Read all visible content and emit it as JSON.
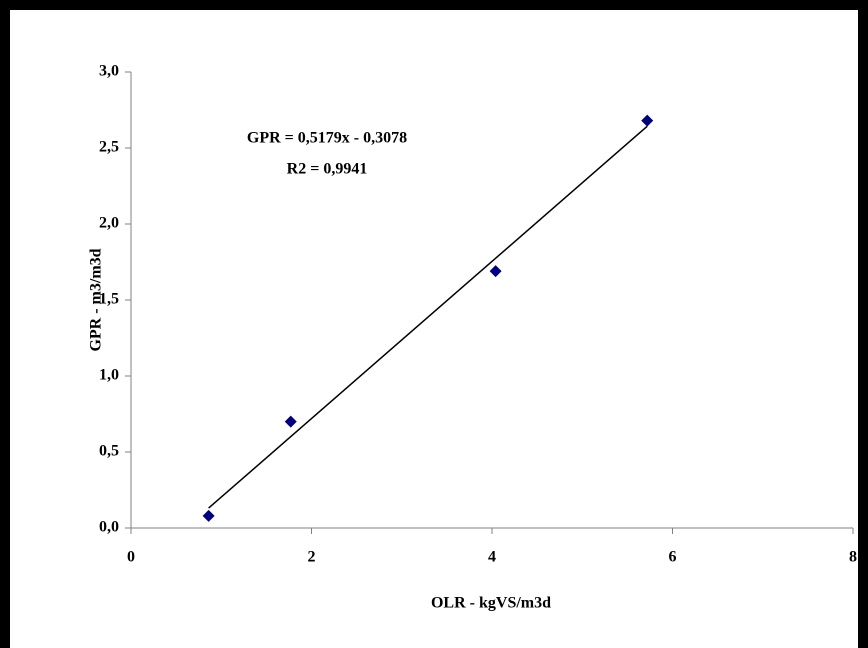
{
  "chart_data": {
    "type": "scatter",
    "x_label": "OLR - kgVS/m3d",
    "y_label": "GPR - m3/m3d",
    "annotations": [
      "GPR = 0,5179x - 0,3078",
      "R2 = 0,9941"
    ],
    "series": [
      {
        "color": "#000080",
        "x": [
          0.86,
          1.77,
          4.04,
          5.72
        ],
        "values": [
          0.08,
          0.7,
          1.69,
          2.68
        ]
      }
    ],
    "xlim": [
      0,
      8
    ],
    "xticks": [
      0,
      2,
      4,
      6,
      8
    ],
    "ylim": [
      0,
      3
    ],
    "yticks": [
      {
        "value": 0,
        "label": "0,0"
      },
      {
        "value": 0.5,
        "label": "0,5"
      },
      {
        "value": 1,
        "label": "1,0"
      },
      {
        "value": 1.5,
        "label": "1,5"
      },
      {
        "value": 2,
        "label": "2,0"
      },
      {
        "value": 2.5,
        "label": "2,5"
      },
      {
        "value": 3,
        "label": "3,0"
      }
    ],
    "trendline": true
  }
}
